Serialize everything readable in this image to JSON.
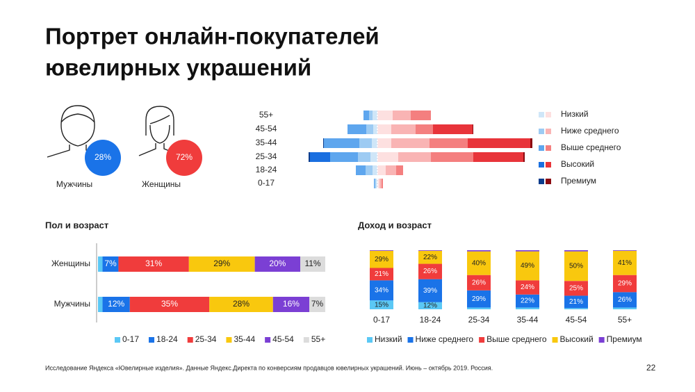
{
  "header": {
    "title": [
      "Портрет онлайн-покупателей",
      "ювелирных украшений"
    ]
  },
  "chart_data": [
    {
      "type": "circles",
      "categories": [
        "Мужчины",
        "Женщины"
      ],
      "values": [
        28,
        72
      ],
      "value_labels": [
        "28%",
        "72%"
      ],
      "colors": [
        "#1a73e8",
        "#f03c3c"
      ]
    },
    {
      "type": "pyramid",
      "categories": [
        "55+",
        "45-54",
        "35-44",
        "25-34",
        "18-24",
        "0-17"
      ],
      "series": [
        {
          "name": "Низкий",
          "color_left": "#cfe6f8",
          "color_right": "#fde0e0",
          "left": [
            7,
            6,
            8,
            10,
            7,
            2
          ],
          "right": [
            22,
            20,
            20,
            30,
            12,
            3
          ]
        },
        {
          "name": "Ниже среднего",
          "color_left": "#9dcbf3",
          "color_right": "#f9b4b4",
          "left": [
            5,
            10,
            18,
            18,
            10,
            2
          ],
          "right": [
            26,
            35,
            55,
            47,
            15,
            3
          ]
        },
        {
          "name": "Выше среднего",
          "color_left": "#5ea6ee",
          "color_right": "#f47f7f",
          "left": [
            8,
            27,
            51,
            40,
            14,
            1
          ],
          "right": [
            29,
            25,
            55,
            61,
            10,
            2
          ]
        },
        {
          "name": "Высокий",
          "color_left": "#1a6fe0",
          "color_right": "#e8343a",
          "left": [
            0,
            0,
            0,
            29,
            0,
            0
          ],
          "right": [
            0,
            57,
            90,
            72,
            0,
            0
          ]
        },
        {
          "name": "Премиум",
          "color_left": "#0b3c8c",
          "color_right": "#8b0a10",
          "left": [
            0,
            0,
            1,
            2,
            0,
            0
          ],
          "right": [
            0,
            1,
            3,
            2,
            0,
            0
          ]
        }
      ]
    },
    {
      "type": "bar",
      "orientation": "horizontal",
      "stacked": true,
      "title": "Пол и возраст",
      "categories": [
        "Женщины",
        "Мужчины"
      ],
      "xlim": [
        0,
        100
      ],
      "series": [
        {
          "name": "0-17",
          "color": "#5bc8f5",
          "values": [
            2,
            2
          ],
          "value_labels": [
            null,
            null
          ]
        },
        {
          "name": "18-24",
          "color": "#1a73e8",
          "values": [
            7,
            12
          ],
          "value_labels": [
            "7%",
            "12%"
          ]
        },
        {
          "name": "25-34",
          "color": "#f03c3c",
          "values": [
            31,
            35
          ],
          "value_labels": [
            "31%",
            "35%"
          ]
        },
        {
          "name": "35-44",
          "color": "#f9c80e",
          "values": [
            29,
            28
          ],
          "value_labels": [
            "29%",
            "28%"
          ]
        },
        {
          "name": "45-54",
          "color": "#7b3fd4",
          "values": [
            20,
            16
          ],
          "value_labels": [
            "20%",
            "16%"
          ]
        },
        {
          "name": "55+",
          "color": "#dcdcdc",
          "values": [
            11,
            7
          ],
          "value_labels": [
            "11%",
            "7%"
          ]
        }
      ]
    },
    {
      "type": "bar",
      "orientation": "vertical",
      "stacked": true,
      "title": "Доход и возраст",
      "categories": [
        "0-17",
        "18-24",
        "25-34",
        "35-44",
        "45-54",
        "55+"
      ],
      "ylim": [
        0,
        100
      ],
      "series": [
        {
          "name": "Низкий",
          "color": "#5bc8f5",
          "values": [
            15,
            12,
            3,
            3,
            2,
            3
          ],
          "value_labels": [
            "15%",
            "12%",
            null,
            null,
            null,
            null
          ]
        },
        {
          "name": "Ниже среднего",
          "color": "#1a73e8",
          "values": [
            34,
            39,
            29,
            22,
            21,
            26
          ],
          "value_labels": [
            "34%",
            "39%",
            "29%",
            "22%",
            "21%",
            "26%"
          ]
        },
        {
          "name": "Выше среднего",
          "color": "#f03c3c",
          "values": [
            21,
            26,
            26,
            24,
            25,
            29
          ],
          "value_labels": [
            "21%",
            "26%",
            "26%",
            "24%",
            "25%",
            "29%"
          ]
        },
        {
          "name": "Высокий",
          "color": "#f9c80e",
          "values": [
            29,
            22,
            40,
            49,
            50,
            41
          ],
          "value_labels": [
            "29%",
            "22%",
            "40%",
            "49%",
            "50%",
            "41%"
          ]
        },
        {
          "name": "Премиум",
          "color": "#7b3fd4",
          "values": [
            1,
            1,
            2,
            2,
            2,
            1
          ],
          "value_labels": [
            null,
            null,
            null,
            null,
            null,
            null
          ]
        }
      ]
    }
  ],
  "footer": {
    "source": "Исследование Яндекса «Ювелирные изделия». Данные Яндекс.Директа по конверсиям продавцов ювелирных украшений. Июнь – октябрь 2019. Россия.",
    "page": 22
  }
}
